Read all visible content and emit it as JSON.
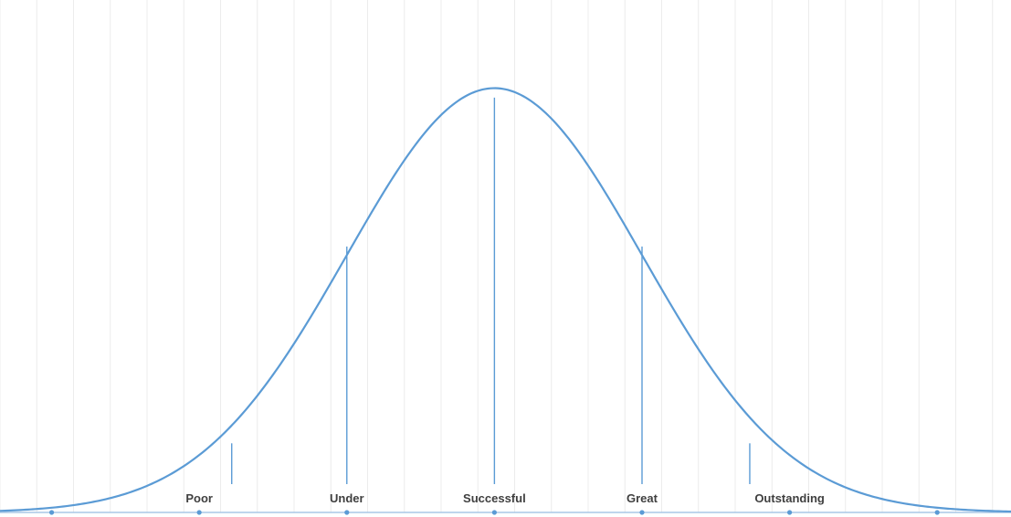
{
  "chart_data": {
    "type": "line",
    "subtype": "normal-distribution-curve",
    "title": "",
    "xlabel": "",
    "ylabel": "",
    "xlim": [
      -3.35,
      3.5
    ],
    "ylim": [
      0,
      0.42
    ],
    "grid": "vertical",
    "legend": "none",
    "curve": {
      "mean": 0,
      "sd": 1,
      "color": "#5b9bd5"
    },
    "axis_points": [
      -3,
      -2,
      -1,
      0,
      1,
      2,
      3
    ],
    "categories": [
      {
        "label": "Poor",
        "x": -2,
        "marker_x": -1.78,
        "marker_height": 0.065
      },
      {
        "label": "Under",
        "x": -1,
        "marker_x": -1,
        "marker_height": 0.25
      },
      {
        "label": "Successful",
        "x": 0,
        "marker_x": 0,
        "marker_height": 0.39
      },
      {
        "label": "Great",
        "x": 1,
        "marker_x": 1,
        "marker_height": 0.25
      },
      {
        "label": "Outstanding",
        "x": 2,
        "marker_x": 1.73,
        "marker_height": 0.065
      }
    ],
    "colors": {
      "curve": "#5b9bd5",
      "baseline": "#a9c7e5",
      "grid": "#ececec",
      "label": "#3f3f3f"
    }
  }
}
